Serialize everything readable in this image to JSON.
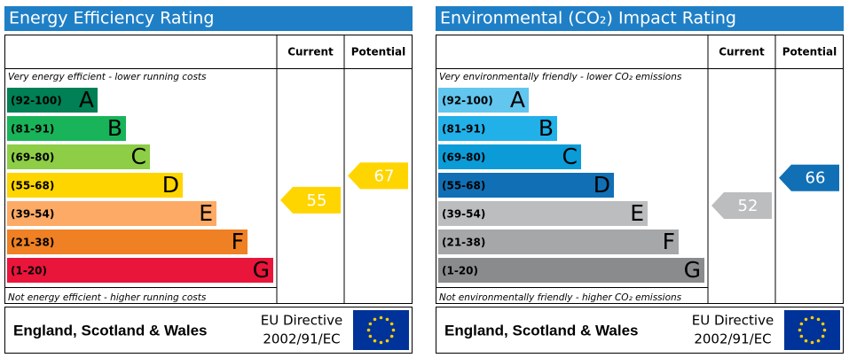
{
  "panels": [
    {
      "title": "Energy Efficiency Rating",
      "columns": [
        "Current",
        "Potential"
      ],
      "top_note": "Very energy efficient - lower running costs",
      "bottom_note": "Not energy efficient - higher running costs",
      "bands": [
        {
          "range": "(92-100)",
          "letter": "A",
          "color": "#008054"
        },
        {
          "range": "(81-91)",
          "letter": "B",
          "color": "#19b459"
        },
        {
          "range": "(69-80)",
          "letter": "C",
          "color": "#8dce46"
        },
        {
          "range": "(55-68)",
          "letter": "D",
          "color": "#ffd500"
        },
        {
          "range": "(39-54)",
          "letter": "E",
          "color": "#fcaa65"
        },
        {
          "range": "(21-38)",
          "letter": "F",
          "color": "#ef8023"
        },
        {
          "range": "(1-20)",
          "letter": "G",
          "color": "#e9153b"
        }
      ],
      "current": 55,
      "potential": 67,
      "footer": "England, Scotland & Wales",
      "directive": [
        "EU Directive",
        "2002/91/EC"
      ]
    },
    {
      "title": "Environmental (CO₂) Impact Rating",
      "columns": [
        "Current",
        "Potential"
      ],
      "top_note": "Very environmentally friendly - lower CO₂ emissions",
      "bottom_note": "Not environmentally friendly - higher CO₂ emissions",
      "bands": [
        {
          "range": "(92-100)",
          "letter": "A",
          "color": "#62c6ef"
        },
        {
          "range": "(81-91)",
          "letter": "B",
          "color": "#22b0e8"
        },
        {
          "range": "(69-80)",
          "letter": "C",
          "color": "#0b9cd8"
        },
        {
          "range": "(55-68)",
          "letter": "D",
          "color": "#1170b5"
        },
        {
          "range": "(39-54)",
          "letter": "E",
          "color": "#bbbdbf"
        },
        {
          "range": "(21-38)",
          "letter": "F",
          "color": "#a5a7a9"
        },
        {
          "range": "(1-20)",
          "letter": "G",
          "color": "#898b8d"
        }
      ],
      "current": 52,
      "potential": 66,
      "footer": "England, Scotland & Wales",
      "directive": [
        "EU Directive",
        "2002/91/EC"
      ]
    }
  ]
}
